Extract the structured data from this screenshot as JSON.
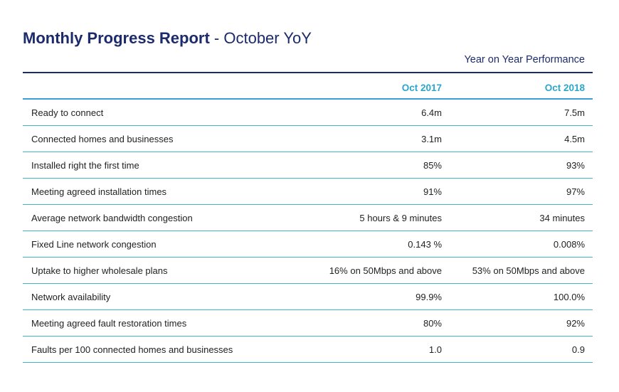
{
  "title": {
    "main": "Monthly Progress Report",
    "sub": " - October YoY"
  },
  "section_label": "Year on Year Performance",
  "columns": [
    "Oct 2017",
    "Oct 2018"
  ],
  "rows": [
    {
      "label": "Ready to connect",
      "v2017": "6.4m",
      "v2018": "7.5m"
    },
    {
      "label": "Connected homes and businesses",
      "v2017": "3.1m",
      "v2018": "4.5m"
    },
    {
      "label": "Installed right the first time",
      "v2017": "85%",
      "v2018": "93%"
    },
    {
      "label": "Meeting agreed installation times",
      "v2017": "91%",
      "v2018": "97%"
    },
    {
      "label": "Average network bandwidth congestion",
      "v2017": "5 hours & 9 minutes",
      "v2018": "34 minutes"
    },
    {
      "label": "Fixed Line network congestion",
      "v2017": "0.143 %",
      "v2018": "0.008%"
    },
    {
      "label": "Uptake to higher wholesale plans",
      "v2017": "16% on 50Mbps and above",
      "v2018": "53% on 50Mbps and above"
    },
    {
      "label": "Network availability",
      "v2017": "99.9%",
      "v2018": "100.0%"
    },
    {
      "label": "Meeting agreed fault restoration times",
      "v2017": "80%",
      "v2018": "92%"
    },
    {
      "label": "Faults per 100 connected homes and businesses",
      "v2017": "1.0",
      "v2018": "0.9"
    }
  ],
  "colors": {
    "title": "#1c2b6b",
    "header_text": "#2aa7c9",
    "row_rule": "#3fb8c4"
  }
}
